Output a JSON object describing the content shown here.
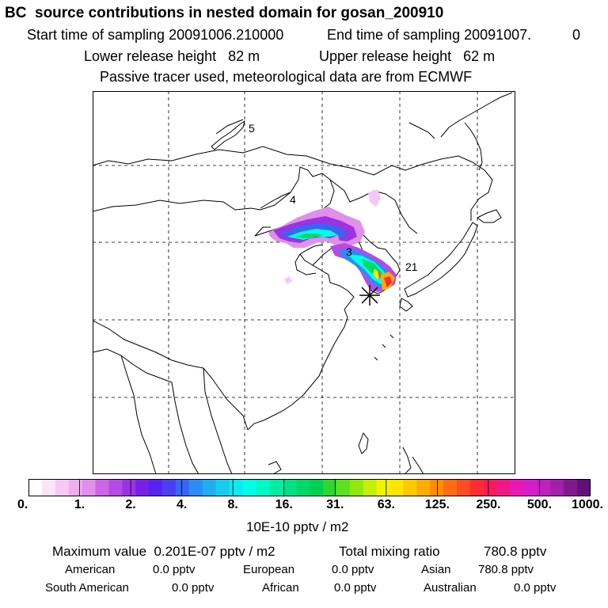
{
  "header": {
    "title": "BC  source contributions in nested domain for gosan_200910",
    "start_time": "Start time of sampling 20091006.210000",
    "end_time": "End time of sampling 20091007.",
    "end_time_suffix": "0",
    "lower_release": "Lower release height   82 m",
    "upper_release": "Upper release height   62 m",
    "tracer_note": "Passive tracer used, meteorological data are from ECMWF"
  },
  "map": {
    "contour_labels": [
      "5",
      "4",
      "3",
      "21"
    ],
    "receptor_marker": "asterisk-icon",
    "colors": {
      "land_line": "#000000",
      "grid": "#000000"
    }
  },
  "colorbar": {
    "tick_labels": [
      "0.",
      "1.",
      "2.",
      "4.",
      "8.",
      "16.",
      "31.",
      "63.",
      "125.",
      "250.",
      "500.",
      "1000."
    ],
    "colors": [
      "#ffffff",
      "#fbe5fb",
      "#f5c8f5",
      "#ecb0ee",
      "#e090ea",
      "#cc66e6",
      "#b44be4",
      "#9a33e2",
      "#7a1ee8",
      "#5a22f0",
      "#4a40f2",
      "#3866f2",
      "#2a8cf4",
      "#20aef2",
      "#18ccf0",
      "#10e8f0",
      "#00ffe8",
      "#00f8c8",
      "#00eca4",
      "#00e284",
      "#00d868",
      "#00d050",
      "#2cd830",
      "#5ce020",
      "#90e810",
      "#c6ee08",
      "#f2f200",
      "#ffe400",
      "#ffc800",
      "#ffac00",
      "#ff8c00",
      "#ff6c14",
      "#ff4c24",
      "#ff2c34",
      "#f81c5c",
      "#f01888",
      "#e818b4",
      "#d81ccc",
      "#c020c0",
      "#a020a8",
      "#801890",
      "#601078"
    ],
    "units": "10E-10 pptv / m2"
  },
  "summary": {
    "maximum": "Maximum value  0.201E-07 pptv / m2",
    "total_label": "Total mixing ratio",
    "total_value": "780.8 pptv",
    "regions_row1": [
      {
        "name": "American",
        "value": "0.0 pptv"
      },
      {
        "name": "European",
        "value": "0.0 pptv"
      },
      {
        "name": "Asian",
        "value": "780.8 pptv"
      }
    ],
    "regions_row2": [
      {
        "name": "South American",
        "value": "0.0 pptv"
      },
      {
        "name": "African",
        "value": "0.0 pptv"
      },
      {
        "name": "Australian",
        "value": "0.0 pptv"
      }
    ]
  }
}
